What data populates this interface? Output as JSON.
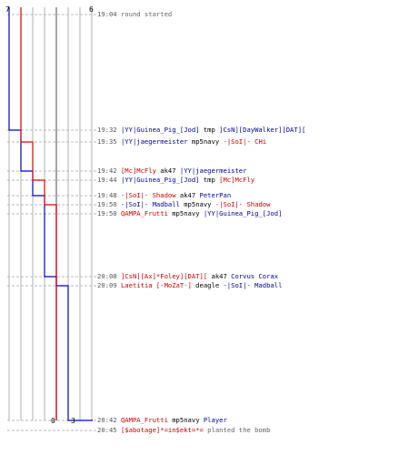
{
  "scores": {
    "blue_start": "7",
    "red_start": "6",
    "blue_end": "0",
    "red_end": "3"
  },
  "colors": {
    "blue": "#0000cc",
    "red": "#dd0000",
    "blue_text": "#000099",
    "red_text": "#cc0000",
    "grid": "#b0b0b0",
    "dash": "#b8b8b8"
  },
  "events": [
    {
      "time": "19:04",
      "parts": [
        {
          "text": "round started",
          "c": "gray"
        }
      ]
    },
    {
      "time": "19:32",
      "parts": [
        {
          "text": "|YY|Guinea_Pig_[Jod]",
          "c": "blue"
        },
        {
          "text": " tmp ",
          "c": "plain"
        },
        {
          "text": "]CsN][DayWalker][DAT][",
          "c": "blue"
        }
      ]
    },
    {
      "time": "19:35",
      "parts": [
        {
          "text": "|YY|jaegermeister",
          "c": "blue"
        },
        {
          "text": " mp5navy ",
          "c": "plain"
        },
        {
          "text": "-|SoI|- CHi",
          "c": "red"
        }
      ]
    },
    {
      "time": "19:42",
      "parts": [
        {
          "text": "[Mc]McFly",
          "c": "red"
        },
        {
          "text": " ak47 ",
          "c": "plain"
        },
        {
          "text": "|YY|jaegermeister",
          "c": "blue"
        }
      ]
    },
    {
      "time": "19:44",
      "parts": [
        {
          "text": "|YY|Guinea_Pig_[Jod]",
          "c": "blue"
        },
        {
          "text": " tmp ",
          "c": "plain"
        },
        {
          "text": "[Mc]McFly",
          "c": "red"
        }
      ]
    },
    {
      "time": "19:48",
      "parts": [
        {
          "text": "-|SoI|- Shadow",
          "c": "red"
        },
        {
          "text": " ak47 ",
          "c": "plain"
        },
        {
          "text": "PeterPan",
          "c": "blue"
        }
      ]
    },
    {
      "time": "19:50",
      "parts": [
        {
          "text": "-|SoI|- Madball",
          "c": "blue"
        },
        {
          "text": " mp5navy ",
          "c": "plain"
        },
        {
          "text": "-|SoI|- Shadow",
          "c": "red"
        }
      ]
    },
    {
      "time": "19:50",
      "parts": [
        {
          "text": "QAMPA_Frutti",
          "c": "red"
        },
        {
          "text": " mp5navy ",
          "c": "plain"
        },
        {
          "text": "|YY|Guinea_Pig_[Jod]",
          "c": "blue"
        }
      ]
    },
    {
      "time": "20:08",
      "parts": [
        {
          "text": "]CsN][Ax]*Foley][DAT][",
          "c": "red"
        },
        {
          "text": " ak47 ",
          "c": "plain"
        },
        {
          "text": "Corvus Corax",
          "c": "blue"
        }
      ]
    },
    {
      "time": "20:09",
      "parts": [
        {
          "text": "Laetitia [-MoZaT-]",
          "c": "red"
        },
        {
          "text": " deagle ",
          "c": "plain"
        },
        {
          "text": "-|SoI|- Madball",
          "c": "blue"
        }
      ]
    },
    {
      "time": "20:42",
      "parts": [
        {
          "text": "QAMPA_Frutti",
          "c": "red"
        },
        {
          "text": " mp5navy ",
          "c": "plain"
        },
        {
          "text": "Player",
          "c": "blue"
        }
      ]
    },
    {
      "time": "20:45",
      "parts": [
        {
          "text": "[$abotage]*=in$ekt=*=",
          "c": "red"
        },
        {
          "text": " planted the bomb",
          "c": "gray"
        }
      ]
    }
  ],
  "chart_data": {
    "type": "line",
    "title": "",
    "xlabel": "",
    "ylabel": "",
    "xlim": [
      0,
      7
    ],
    "series": [
      {
        "name": "",
        "color": "#0000cc",
        "points": [
          [
            7,
            "19:04"
          ],
          [
            7,
            "19:32"
          ],
          [
            6,
            "19:35"
          ],
          [
            6,
            "19:42"
          ],
          [
            5,
            "19:44"
          ],
          [
            5,
            "19:48"
          ],
          [
            4,
            "19:50"
          ],
          [
            4,
            "19:50"
          ],
          [
            3,
            "20:08"
          ],
          [
            2,
            "20:09"
          ],
          [
            2,
            "20:42"
          ],
          [
            1,
            "20:42"
          ],
          [
            0,
            "20:45"
          ]
        ]
      },
      {
        "name": "",
        "color": "#dd0000",
        "points": [
          [
            6,
            "19:04"
          ],
          [
            6,
            "19:32"
          ],
          [
            6,
            "19:35"
          ],
          [
            5,
            "19:42"
          ],
          [
            5,
            "19:44"
          ],
          [
            4,
            "19:48"
          ],
          [
            4,
            "19:50"
          ],
          [
            3,
            "19:50"
          ],
          [
            3,
            "20:08"
          ],
          [
            3,
            "20:09"
          ],
          [
            3,
            "20:42"
          ],
          [
            3,
            "20:45"
          ]
        ]
      }
    ]
  }
}
